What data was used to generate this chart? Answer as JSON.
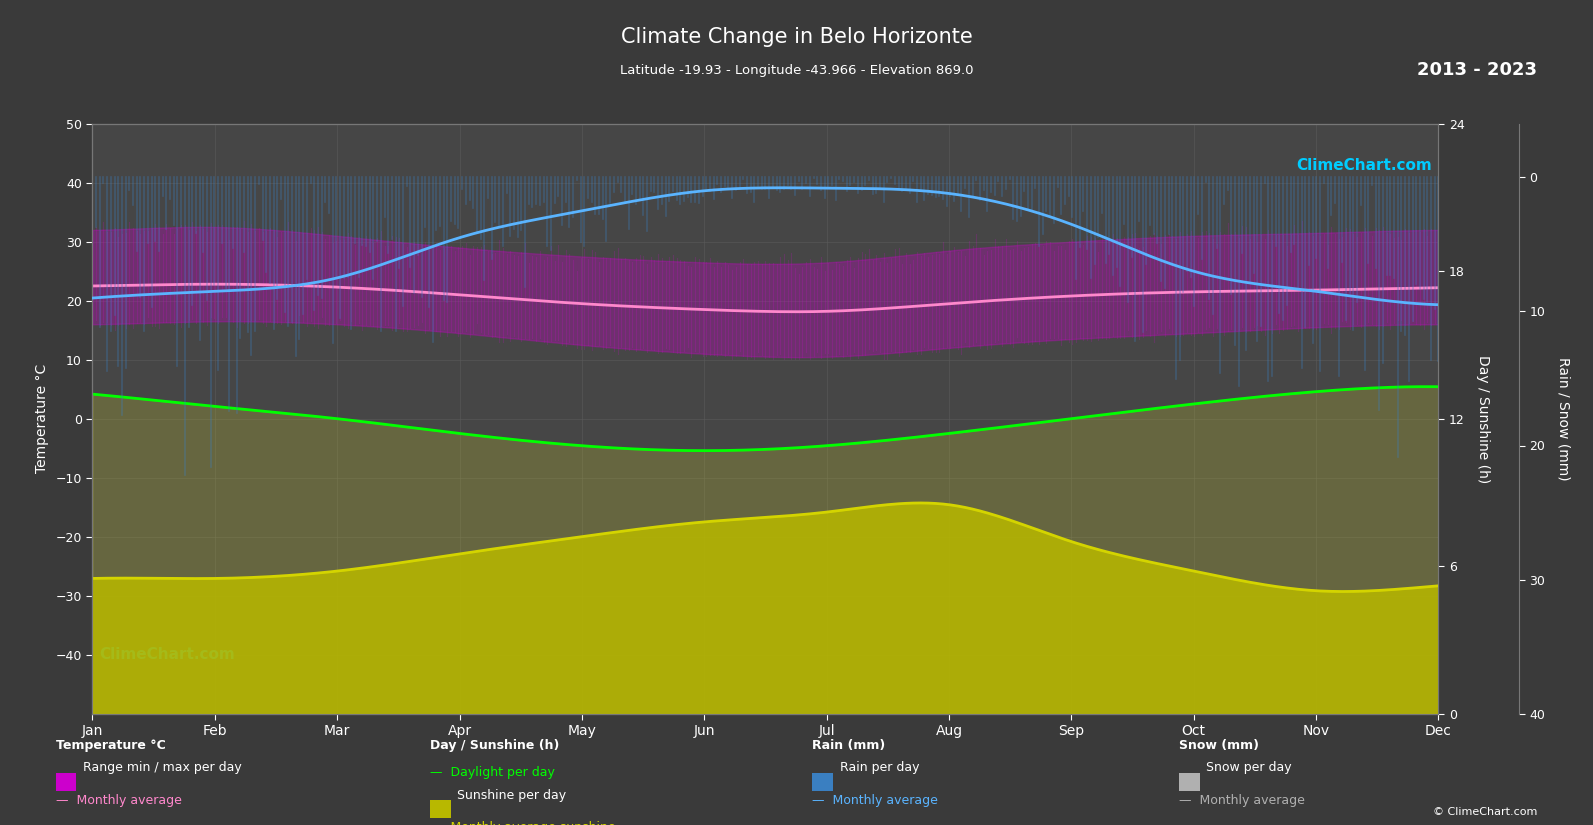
{
  "title": "Climate Change in Belo Horizonte",
  "subtitle": "Latitude -19.93 - Longitude -43.966 - Elevation 869.0",
  "year_range": "2013 - 2023",
  "background_color": "#3a3a3a",
  "plot_bg_color": "#464646",
  "grid_color": "#5a5a5a",
  "text_color": "#ffffff",
  "months": [
    "Jan",
    "Feb",
    "Mar",
    "Apr",
    "May",
    "Jun",
    "Jul",
    "Aug",
    "Sep",
    "Oct",
    "Nov",
    "Dec"
  ],
  "temp_ylim": [
    -50,
    50
  ],
  "sunshine_ylim": [
    0,
    24
  ],
  "sunshine_ticks": [
    0,
    6,
    12,
    18,
    24
  ],
  "temp_ticks": [
    -40,
    -30,
    -20,
    -10,
    0,
    10,
    20,
    30,
    40,
    50
  ],
  "rain_ticks": [
    40,
    30,
    20,
    10,
    0
  ],
  "temp_avg": [
    22.5,
    22.8,
    22.3,
    21.0,
    19.5,
    18.5,
    18.2,
    19.5,
    20.8,
    21.5,
    21.8,
    22.2
  ],
  "daylight": [
    13.0,
    12.5,
    12.0,
    11.4,
    10.9,
    10.7,
    10.9,
    11.4,
    12.0,
    12.6,
    13.1,
    13.3
  ],
  "sunshine_avg": [
    5.5,
    5.5,
    5.8,
    6.5,
    7.2,
    7.8,
    8.2,
    8.5,
    7.0,
    5.8,
    5.0,
    5.2
  ],
  "temp_min_range": [
    16.0,
    16.5,
    16.0,
    14.5,
    12.5,
    11.0,
    10.5,
    12.0,
    13.5,
    14.5,
    15.5,
    16.0
  ],
  "temp_max_range": [
    32.0,
    32.5,
    31.0,
    29.0,
    27.5,
    26.5,
    26.5,
    28.5,
    30.0,
    31.0,
    31.5,
    32.0
  ],
  "rain_per_day": [
    9.0,
    8.5,
    7.5,
    4.5,
    2.5,
    1.0,
    0.8,
    1.2,
    3.5,
    7.0,
    8.5,
    9.5
  ]
}
